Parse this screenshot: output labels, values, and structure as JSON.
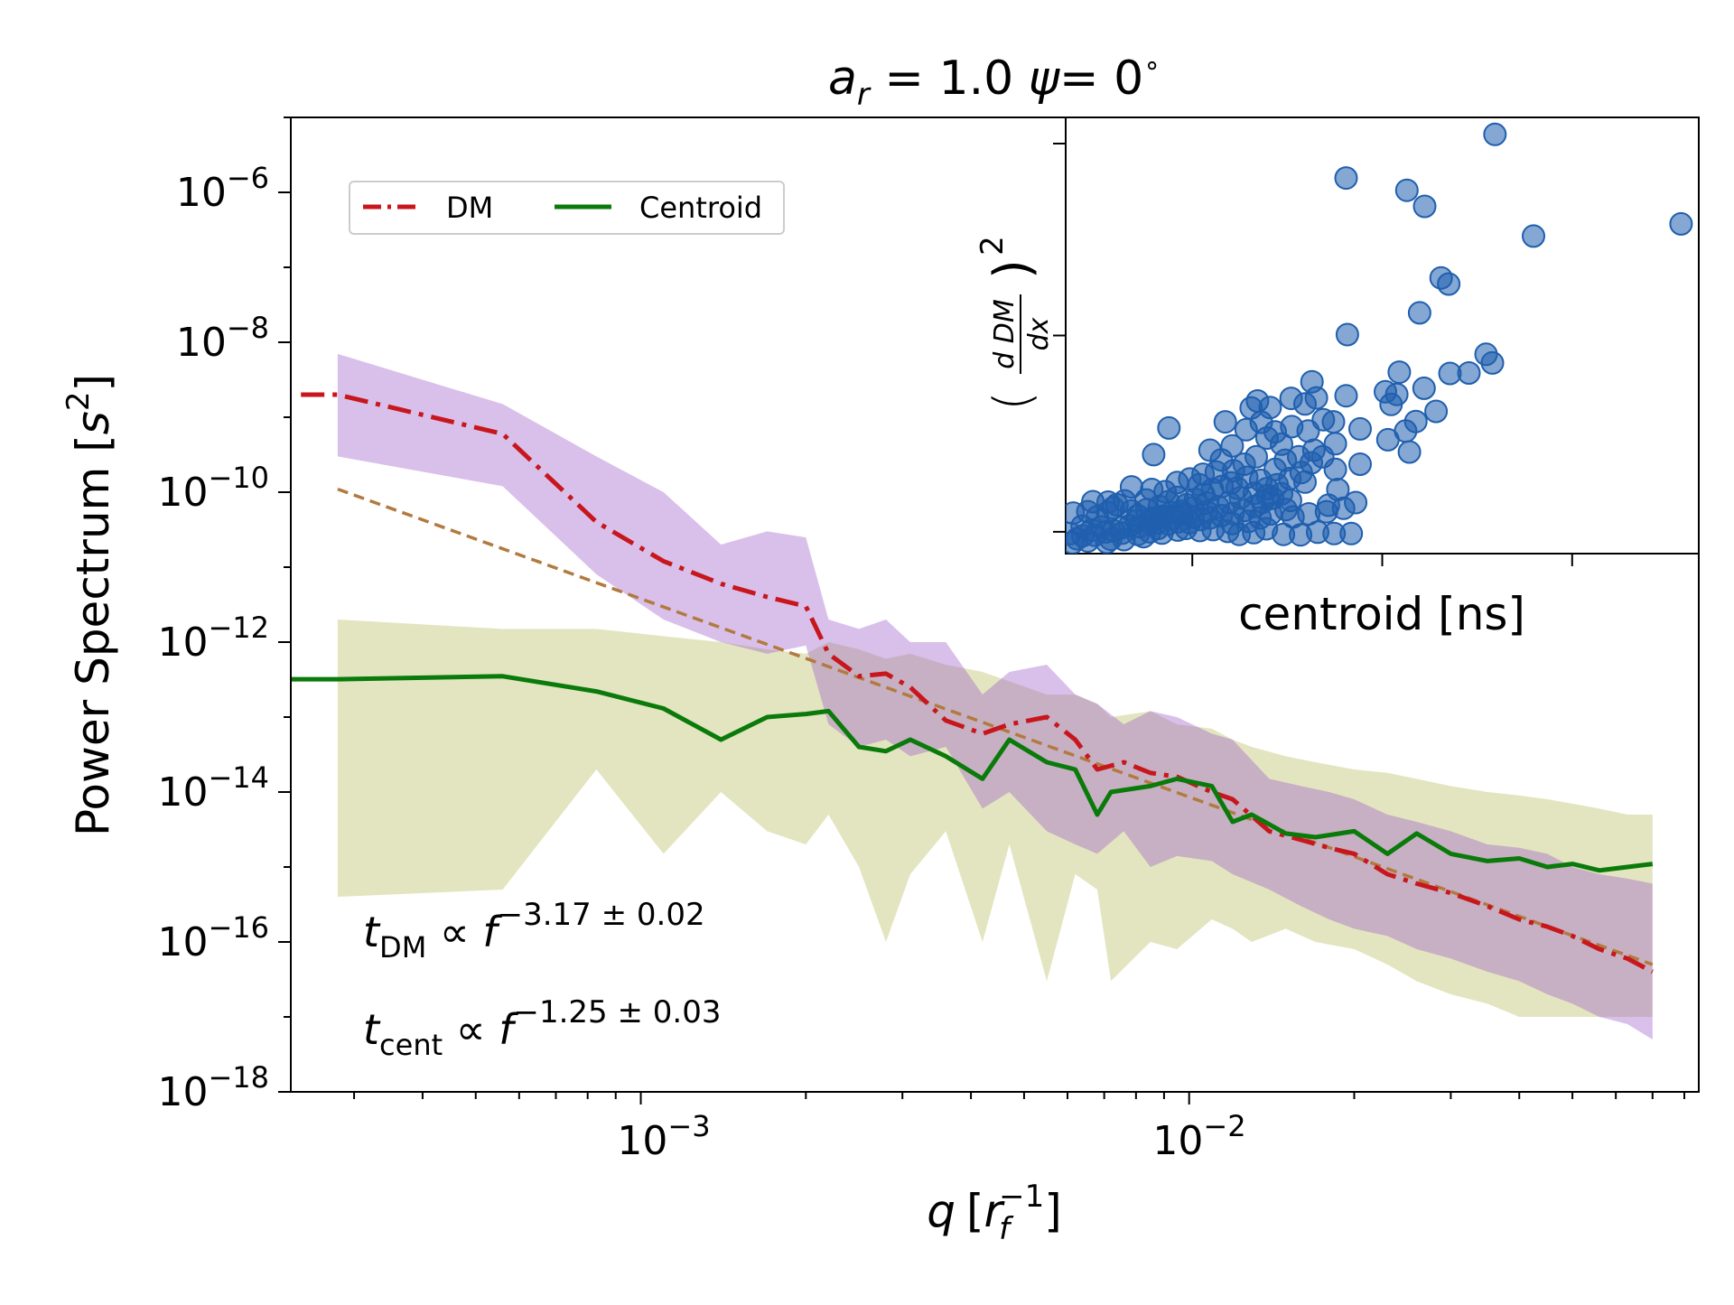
{
  "chart_data": [
    {
      "type": "line",
      "id": "main",
      "title_parts": {
        "a": "a",
        "a_sub": "r",
        "rest": " = 1.0 ",
        "psi": "ψ",
        "rest2": "= 0",
        "deg": "∘"
      },
      "xlabel": {
        "q": "q",
        "r": "r",
        "r_sub": "f",
        "r_sup": "−1"
      },
      "ylabel": {
        "main": "Power Spectrum [",
        "s": "s",
        "s_sup": "2",
        "end": "]"
      },
      "x_scale": "log",
      "y_scale": "log",
      "xlim": [
        0.00023,
        0.085
      ],
      "ylim": [
        1e-18,
        1e-05
      ],
      "x_ticks": [
        {
          "value": 0.001,
          "base": "10",
          "exp": "−3"
        },
        {
          "value": 0.01,
          "base": "10",
          "exp": "−2"
        }
      ],
      "y_ticks": [
        {
          "value": 1e-06,
          "base": "10",
          "exp": "−6"
        },
        {
          "value": 1e-08,
          "base": "10",
          "exp": "−8"
        },
        {
          "value": 1e-10,
          "base": "10",
          "exp": "−10"
        },
        {
          "value": 1e-12,
          "base": "10",
          "exp": "−12"
        },
        {
          "value": 1e-14,
          "base": "10",
          "exp": "−14"
        },
        {
          "value": 1e-16,
          "base": "10",
          "exp": "−16"
        },
        {
          "value": 1e-18,
          "base": "10",
          "exp": "−18"
        }
      ],
      "legend": {
        "position": "upper-left",
        "entries": [
          {
            "label": "DM",
            "color": "#c8161d",
            "style": "dashdot"
          },
          {
            "label": "Centroid",
            "color": "#0a7a0a",
            "style": "solid"
          }
        ]
      },
      "series": [
        {
          "name": "DM",
          "color": "#c8161d",
          "x": [
            0.00024,
            0.00028,
            0.00056,
            0.00083,
            0.0011,
            0.0014,
            0.0017,
            0.002,
            0.0022,
            0.0025,
            0.0028,
            0.0031,
            0.0036,
            0.0042,
            0.0047,
            0.0055,
            0.0062,
            0.0068,
            0.0076,
            0.0085,
            0.0095,
            0.011,
            0.012,
            0.014,
            0.016,
            0.018,
            0.02,
            0.023,
            0.026,
            0.03,
            0.035,
            0.04,
            0.045,
            0.05,
            0.056,
            0.063,
            0.07
          ],
          "y": [
            2e-09,
            2e-09,
            6e-10,
            4e-11,
            1.2e-11,
            6e-12,
            4e-12,
            3e-12,
            7e-13,
            3.5e-13,
            3.8e-13,
            2.5e-13,
            9e-14,
            6e-14,
            8e-14,
            1e-13,
            5e-14,
            2e-14,
            2.5e-14,
            1.8e-14,
            1.6e-14,
            1e-14,
            8e-15,
            3e-15,
            2.3e-15,
            1.8e-15,
            1.5e-15,
            8e-16,
            6e-16,
            4.5e-16,
            3e-16,
            2e-16,
            1.6e-16,
            1.2e-16,
            8e-17,
            6e-17,
            4e-17
          ],
          "band_low": [
            null,
            3e-10,
            1.2e-10,
            8e-12,
            2e-12,
            1e-12,
            7e-13,
            9e-13,
            8e-14,
            4e-14,
            5e-14,
            3e-14,
            4e-14,
            6e-15,
            1e-14,
            3e-15,
            2e-15,
            1.5e-15,
            3e-15,
            1e-15,
            1.4e-15,
            1.2e-15,
            8e-16,
            5e-16,
            3e-16,
            2e-16,
            1.5e-16,
            1.2e-16,
            8e-17,
            6e-17,
            4e-17,
            3e-17,
            2e-17,
            1.5e-17,
            1e-17,
            8e-18,
            5e-18
          ],
          "band_high": [
            null,
            7e-09,
            1.5e-09,
            3e-10,
            1e-10,
            2e-11,
            3e-11,
            2.5e-11,
            2e-12,
            1.5e-12,
            2e-12,
            1e-12,
            1e-12,
            2e-13,
            4e-13,
            5e-13,
            2e-13,
            1.5e-13,
            8e-14,
            1.2e-13,
            1e-13,
            6e-14,
            5e-14,
            1.5e-14,
            1.2e-14,
            1e-14,
            8e-15,
            5e-15,
            4e-15,
            3e-15,
            2e-15,
            1.8e-15,
            1.5e-15,
            1e-15,
            8e-16,
            7e-16,
            6e-16
          ]
        },
        {
          "name": "Centroid",
          "color": "#0a7a0a",
          "x": [
            0.00023,
            0.00028,
            0.00056,
            0.00083,
            0.0011,
            0.0014,
            0.0017,
            0.002,
            0.0022,
            0.0025,
            0.0028,
            0.0031,
            0.0036,
            0.0042,
            0.0047,
            0.0055,
            0.0062,
            0.0068,
            0.0072,
            0.0085,
            0.0095,
            0.011,
            0.012,
            0.013,
            0.015,
            0.017,
            0.02,
            0.023,
            0.026,
            0.03,
            0.035,
            0.04,
            0.045,
            0.05,
            0.056,
            0.063,
            0.07
          ],
          "y": [
            3.2e-13,
            3.2e-13,
            3.5e-13,
            2.2e-13,
            1.3e-13,
            5e-14,
            1e-13,
            1.1e-13,
            1.2e-13,
            4e-14,
            3.5e-14,
            5e-14,
            3e-14,
            1.5e-14,
            5e-14,
            2.5e-14,
            2e-14,
            5e-15,
            1e-14,
            1.2e-14,
            1.5e-14,
            1.2e-14,
            4e-15,
            5e-15,
            2.8e-15,
            2.5e-15,
            3e-15,
            1.5e-15,
            2.8e-15,
            1.5e-15,
            1.2e-15,
            1.3e-15,
            1e-15,
            1.1e-15,
            9e-16,
            1e-15,
            1.1e-15
          ],
          "band_low": [
            null,
            4e-16,
            5e-16,
            2e-14,
            1.5e-15,
            1e-14,
            3e-15,
            2e-15,
            5e-15,
            1e-15,
            1e-16,
            8e-16,
            3e-15,
            1e-16,
            2e-15,
            3e-17,
            8e-16,
            5e-16,
            3e-17,
            1e-16,
            8e-17,
            2e-16,
            1.5e-16,
            1e-16,
            1.5e-16,
            1e-16,
            8e-17,
            5e-17,
            3e-17,
            2e-17,
            1.5e-17,
            1e-17,
            1e-17,
            1e-17,
            1e-17,
            1e-17,
            1e-17
          ],
          "band_high": [
            null,
            2e-12,
            1.5e-12,
            1.5e-12,
            1.2e-12,
            1e-12,
            8e-13,
            7e-13,
            1e-12,
            8e-13,
            6e-13,
            7e-13,
            5e-13,
            4e-13,
            3e-13,
            2e-13,
            2e-13,
            1.5e-13,
            1e-13,
            1.2e-13,
            8e-14,
            7e-14,
            5e-14,
            4e-14,
            3e-14,
            2.5e-14,
            2e-14,
            1.8e-14,
            1.5e-14,
            1.2e-14,
            1e-14,
            9e-15,
            8e-15,
            7e-15,
            6e-15,
            5e-15,
            5e-15
          ]
        },
        {
          "name": "fit",
          "color": "#b27a3e",
          "style": "dashed",
          "x": [
            0.00028,
            0.07
          ],
          "y": [
            1.1e-10,
            5e-17
          ]
        }
      ],
      "annotations": [
        {
          "id": "dm",
          "var": "t",
          "sub": "DM",
          "prop": " ∝ ",
          "f": "f",
          "sup": "−3.17 ± 0.02"
        },
        {
          "id": "cent",
          "var": "t",
          "sub": "cent",
          "prop": " ∝ ",
          "f": "f",
          "sup": "−1.25 ± 0.03"
        }
      ]
    },
    {
      "type": "scatter",
      "id": "inset",
      "xlabel": "centroid [ns]",
      "ylabel": {
        "open": "(",
        "num": "d DM",
        "den": "dx",
        "close": ")",
        "sup": "2"
      },
      "x_units": "arbitrary (0–1)",
      "y_units": "arbitrary (0–1)",
      "xlim": [
        0,
        1
      ],
      "ylim": [
        0,
        1
      ],
      "x_ticks": [
        0.2,
        0.5,
        0.8
      ],
      "y_ticks": [
        0.05,
        0.5,
        0.94
      ],
      "color": "#1f5fae",
      "points": [
        [
          0.972,
          0.756
        ],
        [
          0.678,
          0.961
        ],
        [
          0.443,
          0.861
        ],
        [
          0.539,
          0.833
        ],
        [
          0.567,
          0.796
        ],
        [
          0.739,
          0.728
        ],
        [
          0.593,
          0.632
        ],
        [
          0.605,
          0.618
        ],
        [
          0.559,
          0.552
        ],
        [
          0.445,
          0.502
        ],
        [
          0.664,
          0.457
        ],
        [
          0.674,
          0.437
        ],
        [
          0.527,
          0.416
        ],
        [
          0.607,
          0.413
        ],
        [
          0.637,
          0.414
        ],
        [
          0.566,
          0.379
        ],
        [
          0.505,
          0.371
        ],
        [
          0.443,
          0.362
        ],
        [
          0.514,
          0.342
        ],
        [
          0.523,
          0.365
        ],
        [
          0.585,
          0.326
        ],
        [
          0.553,
          0.303
        ],
        [
          0.537,
          0.281
        ],
        [
          0.509,
          0.261
        ],
        [
          0.543,
          0.233
        ],
        [
          0.389,
          0.394
        ],
        [
          0.396,
          0.357
        ],
        [
          0.378,
          0.343
        ],
        [
          0.356,
          0.356
        ],
        [
          0.323,
          0.335
        ],
        [
          0.303,
          0.35
        ],
        [
          0.293,
          0.334
        ],
        [
          0.407,
          0.307
        ],
        [
          0.465,
          0.286
        ],
        [
          0.423,
          0.302
        ],
        [
          0.383,
          0.281
        ],
        [
          0.357,
          0.291
        ],
        [
          0.426,
          0.252
        ],
        [
          0.392,
          0.237
        ],
        [
          0.426,
          0.193
        ],
        [
          0.465,
          0.205
        ],
        [
          0.378,
          0.164
        ],
        [
          0.43,
          0.147
        ],
        [
          0.355,
          0.122
        ],
        [
          0.415,
          0.111
        ],
        [
          0.319,
          0.133
        ],
        [
          0.265,
          0.19
        ],
        [
          0.271,
          0.15
        ],
        [
          0.228,
          0.237
        ],
        [
          0.217,
          0.182
        ],
        [
          0.163,
          0.288
        ],
        [
          0.139,
          0.227
        ],
        [
          0.104,
          0.153
        ],
        [
          0.104,
          0.098
        ],
        [
          0.075,
          0.105
        ],
        [
          0.066,
          0.094
        ],
        [
          0.05,
          0.084
        ],
        [
          0.012,
          0.093
        ],
        [
          0.064,
          0.05
        ],
        [
          0.089,
          0.047
        ],
        [
          0.007,
          0.046
        ],
        [
          0.027,
          0.041
        ],
        [
          0.046,
          0.042
        ],
        [
          0.018,
          0.034
        ],
        [
          0.071,
          0.033
        ],
        [
          0.011,
          0.025
        ],
        [
          0.035,
          0.029
        ],
        [
          0.065,
          0.026
        ],
        [
          0.092,
          0.032
        ],
        [
          0.114,
          0.044
        ],
        [
          0.123,
          0.039
        ],
        [
          0.133,
          0.05
        ],
        [
          0.152,
          0.047
        ],
        [
          0.146,
          0.058
        ],
        [
          0.177,
          0.054
        ],
        [
          0.19,
          0.058
        ],
        [
          0.212,
          0.053
        ],
        [
          0.233,
          0.055
        ],
        [
          0.256,
          0.051
        ],
        [
          0.274,
          0.044
        ],
        [
          0.297,
          0.048
        ],
        [
          0.317,
          0.057
        ],
        [
          0.344,
          0.044
        ],
        [
          0.371,
          0.043
        ],
        [
          0.398,
          0.049
        ],
        [
          0.424,
          0.046
        ],
        [
          0.451,
          0.046
        ],
        [
          0.114,
          0.087
        ],
        [
          0.128,
          0.101
        ],
        [
          0.148,
          0.108
        ],
        [
          0.162,
          0.119
        ],
        [
          0.176,
          0.129
        ],
        [
          0.191,
          0.112
        ],
        [
          0.205,
          0.124
        ],
        [
          0.218,
          0.136
        ],
        [
          0.232,
          0.147
        ],
        [
          0.247,
          0.154
        ],
        [
          0.261,
          0.162
        ],
        [
          0.286,
          0.175
        ],
        [
          0.308,
          0.168
        ],
        [
          0.331,
          0.193
        ],
        [
          0.347,
          0.214
        ],
        [
          0.368,
          0.222
        ],
        [
          0.388,
          0.208
        ],
        [
          0.406,
          0.222
        ],
        [
          0.112,
          0.075
        ],
        [
          0.136,
          0.081
        ],
        [
          0.154,
          0.086
        ],
        [
          0.168,
          0.081
        ],
        [
          0.184,
          0.091
        ],
        [
          0.201,
          0.084
        ],
        [
          0.223,
          0.096
        ],
        [
          0.241,
          0.107
        ],
        [
          0.258,
          0.117
        ],
        [
          0.276,
          0.128
        ],
        [
          0.298,
          0.138
        ],
        [
          0.318,
          0.149
        ],
        [
          0.334,
          0.158
        ],
        [
          0.354,
          0.172
        ],
        [
          0.372,
          0.186
        ],
        [
          0.144,
          0.07
        ],
        [
          0.162,
          0.068
        ],
        [
          0.178,
          0.073
        ],
        [
          0.196,
          0.071
        ],
        [
          0.213,
          0.078
        ],
        [
          0.228,
          0.082
        ],
        [
          0.246,
          0.087
        ],
        [
          0.264,
          0.092
        ],
        [
          0.282,
          0.099
        ],
        [
          0.299,
          0.108
        ],
        [
          0.311,
          0.118
        ],
        [
          0.327,
          0.127
        ],
        [
          0.341,
          0.137
        ],
        [
          0.223,
          0.116
        ],
        [
          0.201,
          0.105
        ],
        [
          0.183,
          0.097
        ],
        [
          0.167,
          0.094
        ],
        [
          0.151,
          0.083
        ],
        [
          0.133,
          0.072
        ],
        [
          0.116,
          0.062
        ],
        [
          0.101,
          0.064
        ],
        [
          0.087,
          0.059
        ],
        [
          0.076,
          0.052
        ],
        [
          0.056,
          0.061
        ],
        [
          0.041,
          0.054
        ],
        [
          0.026,
          0.063
        ],
        [
          0.263,
          0.069
        ],
        [
          0.289,
          0.074
        ],
        [
          0.307,
          0.082
        ],
        [
          0.324,
          0.091
        ],
        [
          0.348,
          0.101
        ],
        [
          0.359,
          0.084
        ],
        [
          0.384,
          0.091
        ],
        [
          0.412,
          0.096
        ],
        [
          0.439,
          0.104
        ],
        [
          0.458,
          0.117
        ],
        [
          0.238,
          0.187
        ],
        [
          0.246,
          0.215
        ],
        [
          0.282,
          0.205
        ],
        [
          0.301,
          0.222
        ],
        [
          0.263,
          0.247
        ],
        [
          0.341,
          0.251
        ],
        [
          0.318,
          0.265
        ],
        [
          0.285,
          0.284
        ],
        [
          0.252,
          0.302
        ],
        [
          0.309,
          0.301
        ],
        [
          0.331,
          0.279
        ],
        [
          0.176,
          0.163
        ],
        [
          0.196,
          0.171
        ],
        [
          0.211,
          0.158
        ],
        [
          0.136,
          0.147
        ],
        [
          0.157,
          0.142
        ],
        [
          0.127,
          0.123
        ],
        [
          0.093,
          0.121
        ],
        [
          0.081,
          0.112
        ],
        [
          0.067,
          0.118
        ],
        [
          0.043,
          0.119
        ],
        [
          0.035,
          0.096
        ]
      ]
    }
  ]
}
